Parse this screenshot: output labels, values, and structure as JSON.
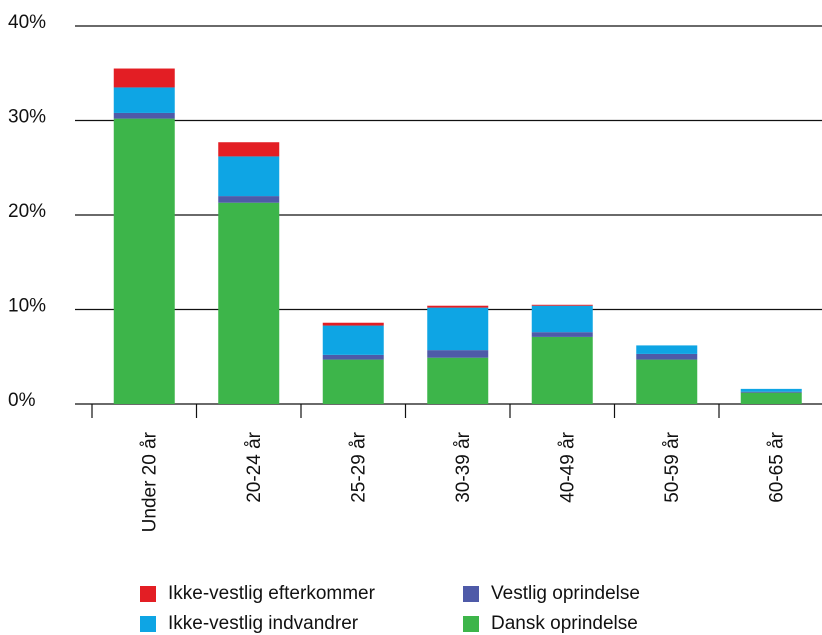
{
  "chart_data": {
    "type": "stacked_bar",
    "categories": [
      "Under 20 år",
      "20-24 år",
      "25-29 år",
      "30-39 år",
      "40-49 år",
      "50-59 år",
      "60-65 år"
    ],
    "series": [
      {
        "name": "Dansk oprindelse",
        "color": "#3db54a",
        "values": [
          30.2,
          21.3,
          4.7,
          4.9,
          7.1,
          4.7,
          1.2
        ]
      },
      {
        "name": "Vestlig oprindelse",
        "color": "#4e5aa8",
        "values": [
          0.6,
          0.7,
          0.5,
          0.8,
          0.5,
          0.6,
          0.1
        ]
      },
      {
        "name": "Ikke-vestlig indvandrer",
        "color": "#0ea5e4",
        "values": [
          2.7,
          4.2,
          3.1,
          4.5,
          2.8,
          0.9,
          0.3
        ]
      },
      {
        "name": "Ikke-vestlig efterkommer",
        "color": "#e31e24",
        "values": [
          2.0,
          1.5,
          0.3,
          0.2,
          0.1,
          0,
          0
        ]
      }
    ],
    "ylim": [
      0,
      40
    ],
    "yticks": [
      {
        "value": 0,
        "label": "0%"
      },
      {
        "value": 10,
        "label": "10%"
      },
      {
        "value": 20,
        "label": "20%"
      },
      {
        "value": 30,
        "label": "30%"
      },
      {
        "value": 40,
        "label": "40%"
      }
    ],
    "grid": true
  }
}
